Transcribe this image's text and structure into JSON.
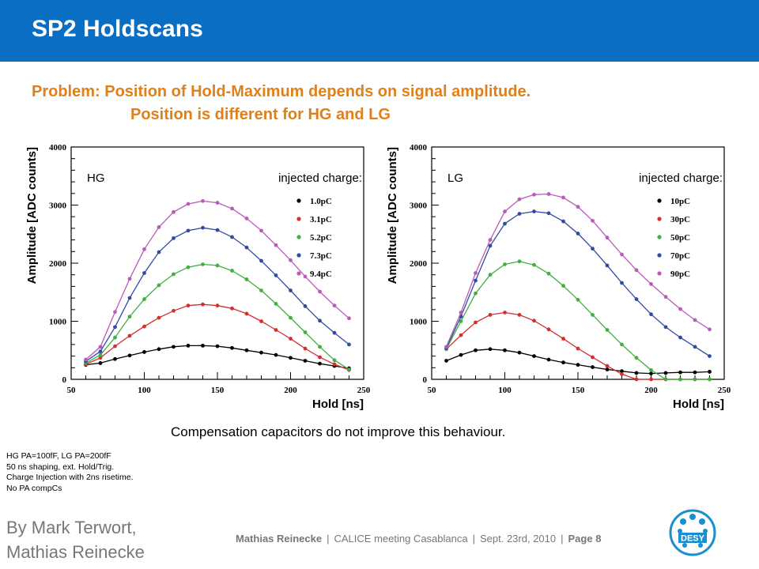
{
  "slide": {
    "title": "SP2 Holdscans",
    "problem_line1": "Problem: Position of Hold-Maximum depends on signal amplitude.",
    "problem_line2": "Position is different for HG and LG",
    "compensation_note": "Compensation capacitors do not improve this behaviour.",
    "notes": [
      "HG PA=100fF, LG PA=200fF",
      "50 ns shaping, ext. Hold/Trig.",
      "Charge Injection with 2ns risetime.",
      "No PA compCs"
    ],
    "author_line1": "By Mark Terwort,",
    "author_line2": "Mathias Reinecke",
    "footer": {
      "name": "Mathias Reinecke",
      "event": "CALICE meeting Casablanca",
      "date": "Sept. 23rd, 2010",
      "page": "Page 8"
    },
    "logo_text": "DESY",
    "colors": {
      "header": "#0a6fc2",
      "problem_text": "#e0801a",
      "footer_text": "#777777"
    }
  },
  "chart_data": [
    {
      "type": "line",
      "panel_label": "HG",
      "legend_title": "injected charge:",
      "xlabel": "Hold [ns]",
      "ylabel": "Amplitude [ADC counts]",
      "xlim": [
        50,
        250
      ],
      "ylim": [
        0,
        4000
      ],
      "xticks": [
        50,
        100,
        150,
        200,
        250
      ],
      "yticks": [
        0,
        1000,
        2000,
        3000,
        4000
      ],
      "legend_position": "top-right",
      "x": [
        60,
        70,
        80,
        90,
        100,
        110,
        120,
        130,
        140,
        150,
        160,
        170,
        180,
        190,
        200,
        210,
        220,
        230,
        240
      ],
      "series": [
        {
          "name": "1.0pC",
          "color": "#000000",
          "values": [
            250,
            280,
            350,
            410,
            470,
            520,
            560,
            580,
            580,
            570,
            540,
            500,
            460,
            420,
            370,
            320,
            270,
            230,
            190
          ]
        },
        {
          "name": "3.1pC",
          "color": "#d03030",
          "values": [
            260,
            370,
            570,
            750,
            910,
            1060,
            1180,
            1270,
            1290,
            1270,
            1220,
            1130,
            1000,
            850,
            700,
            530,
            380,
            260,
            160
          ]
        },
        {
          "name": "5.2pC",
          "color": "#40b040",
          "values": [
            280,
            420,
            720,
            1080,
            1380,
            1620,
            1810,
            1930,
            1980,
            1960,
            1870,
            1720,
            1530,
            1300,
            1060,
            810,
            560,
            330,
            170
          ]
        },
        {
          "name": "7.3pC",
          "color": "#304ca0",
          "values": [
            310,
            480,
            900,
            1400,
            1830,
            2190,
            2430,
            2560,
            2610,
            2570,
            2450,
            2270,
            2040,
            1790,
            1530,
            1260,
            1010,
            800,
            600
          ]
        },
        {
          "name": "9.4pC",
          "color": "#b85cb8",
          "values": [
            340,
            560,
            1160,
            1730,
            2240,
            2620,
            2880,
            3020,
            3070,
            3040,
            2940,
            2770,
            2560,
            2310,
            2050,
            1770,
            1510,
            1270,
            1050
          ]
        }
      ]
    },
    {
      "type": "line",
      "panel_label": "LG",
      "legend_title": "injected charge:",
      "xlabel": "Hold [ns]",
      "ylabel": "Amplitude [ADC counts]",
      "xlim": [
        50,
        250
      ],
      "ylim": [
        0,
        4000
      ],
      "xticks": [
        50,
        100,
        150,
        200,
        250
      ],
      "yticks": [
        0,
        1000,
        2000,
        3000,
        4000
      ],
      "legend_position": "top-right",
      "x": [
        60,
        70,
        80,
        90,
        100,
        110,
        120,
        130,
        140,
        150,
        160,
        170,
        180,
        190,
        200,
        210,
        220,
        230,
        240
      ],
      "series": [
        {
          "name": "10pC",
          "color": "#000000",
          "values": [
            320,
            420,
            500,
            520,
            500,
            460,
            400,
            340,
            290,
            250,
            210,
            170,
            140,
            110,
            100,
            110,
            120,
            120,
            130
          ]
        },
        {
          "name": "30pC",
          "color": "#d03030",
          "values": [
            520,
            760,
            980,
            1110,
            1150,
            1110,
            1010,
            860,
            700,
            530,
            380,
            230,
            90,
            0,
            0,
            0,
            0,
            0,
            0
          ]
        },
        {
          "name": "50pC",
          "color": "#40b040",
          "values": [
            520,
            1000,
            1480,
            1800,
            1980,
            2030,
            1970,
            1820,
            1610,
            1370,
            1110,
            850,
            600,
            370,
            160,
            0,
            0,
            0,
            0
          ]
        },
        {
          "name": "70pC",
          "color": "#304ca0",
          "values": [
            540,
            1080,
            1700,
            2300,
            2680,
            2850,
            2890,
            2860,
            2720,
            2510,
            2250,
            1960,
            1660,
            1380,
            1120,
            900,
            720,
            560,
            400
          ]
        },
        {
          "name": "90pC",
          "color": "#b85cb8",
          "values": [
            560,
            1150,
            1830,
            2400,
            2890,
            3100,
            3180,
            3190,
            3130,
            2970,
            2730,
            2440,
            2150,
            1880,
            1640,
            1420,
            1210,
            1020,
            860
          ]
        }
      ]
    }
  ]
}
